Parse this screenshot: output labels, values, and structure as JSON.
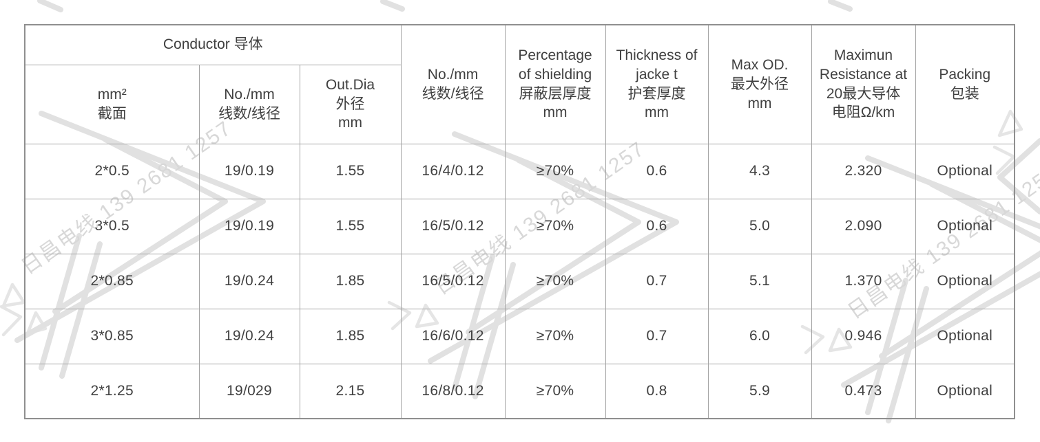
{
  "page": {
    "background_color": "#ffffff",
    "text_color": "#404040",
    "border_color": "#a3a3a3"
  },
  "watermark": {
    "text": "日昌电线 139 2681 1257",
    "color": "#d8d8d8"
  },
  "table": {
    "header": {
      "conductor_label": "Conductor 导体",
      "conductor_sub": [
        "mm²\n截面",
        "No./mm\n线数/线径",
        "Out.Dia\n外径\nmm"
      ],
      "columns": [
        "No./mm\n线数/线径",
        "Percentage\nof shielding\n屏蔽层厚度\nmm",
        "Thickness of\njacke t\n护套厚度\nmm",
        "Max OD.\n最大外径\nmm",
        "Maximun\nResistance at\n20最大导体\n电阻Ω/km",
        "Packing\n包装"
      ]
    },
    "rows": [
      [
        "2*0.5",
        "19/0.19",
        "1.55",
        "16/4/0.12",
        "≥70%",
        "0.6",
        "4.3",
        "2.320",
        "Optional"
      ],
      [
        "3*0.5",
        "19/0.19",
        "1.55",
        "16/5/0.12",
        "≥70%",
        "0.6",
        "5.0",
        "2.090",
        "Optional"
      ],
      [
        "2*0.85",
        "19/0.24",
        "1.85",
        "16/5/0.12",
        "≥70%",
        "0.7",
        "5.1",
        "1.370",
        "Optional"
      ],
      [
        "3*0.85",
        "19/0.24",
        "1.85",
        "16/6/0.12",
        "≥70%",
        "0.7",
        "6.0",
        "0.946",
        "Optional"
      ],
      [
        "2*1.25",
        "19/029",
        "2.15",
        "16/8/0.12",
        "≥70%",
        "0.8",
        "5.9",
        "0.473",
        "Optional"
      ]
    ]
  }
}
